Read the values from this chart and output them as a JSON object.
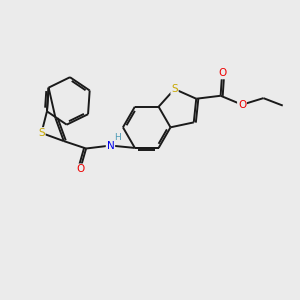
{
  "bg_color": "#ebebeb",
  "bond_color": "#1a1a1a",
  "bond_width": 1.4,
  "S_color": "#c8a800",
  "N_color": "#0000ee",
  "O_color": "#ee0000",
  "H_color": "#4a9ab5",
  "figsize": [
    3.0,
    3.0
  ],
  "dpi": 100,
  "xlim": [
    0,
    10
  ],
  "ylim": [
    0,
    10
  ]
}
